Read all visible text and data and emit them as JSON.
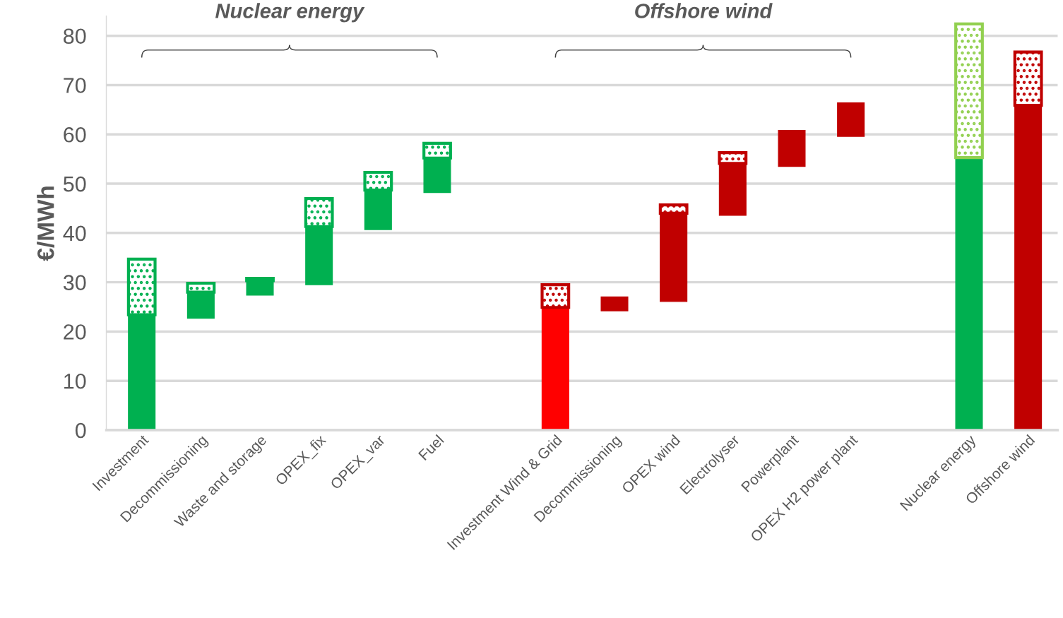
{
  "chart_data": {
    "type": "bar",
    "ylabel": "€/MWh",
    "categories": [
      "Investment",
      "Decommissioning",
      "Waste and storage",
      "OPEX_fix",
      "OPEX_var",
      "Fuel",
      null,
      "Investment Wind & Grid",
      "Decommissioning",
      "OPEX wind",
      "Electrolyser",
      "Powerplant",
      "OPEX H2 power plant",
      null,
      "Nuclear energy",
      "Offshore wind"
    ],
    "series": [
      {
        "base": [
          0,
          22.7,
          27.4,
          29.5,
          40.7,
          48.2,
          null,
          0,
          24.2,
          26.1,
          43.6,
          53.5,
          59.6,
          null,
          0,
          0
        ],
        "values": [
          23.4,
          5.3,
          2.9,
          11.8,
          8.0,
          7.0,
          null,
          24.9,
          2.8,
          17.9,
          10.5,
          7.3,
          6.8,
          null,
          55.3,
          65.9
        ],
        "colors": [
          "#00b050",
          "#00b050",
          "#00b050",
          "#00b050",
          "#00b050",
          "#00b050",
          "#00b050",
          "#ff0000",
          "#c00000",
          "#c00000",
          "#c00000",
          "#c00000",
          "#c00000",
          "#00b050",
          "#00b050",
          "#c00000"
        ]
      },
      {
        "base": [
          23.4,
          28.0,
          30.3,
          41.3,
          48.7,
          55.2,
          null,
          24.9,
          null,
          44.0,
          54.1,
          null,
          null,
          null,
          55.3,
          65.9
        ],
        "values": [
          11.3,
          1.8,
          0.5,
          5.7,
          3.6,
          3.0,
          null,
          4.6,
          null,
          1.7,
          2.2,
          null,
          null,
          null,
          27.1,
          10.8
        ],
        "colors": [
          "#00b050",
          "#00b050",
          "#00b050",
          "#00b050",
          "#00b050",
          "#00b050",
          "#00b050",
          "#c00000",
          "#c00000",
          "#c00000",
          "#c00000",
          "#c00000",
          "#c00000",
          "#00b050",
          "#92d050",
          "#c00000"
        ]
      }
    ],
    "annotations": [
      "Nuclear energy",
      "Offshore wind"
    ],
    "ylim": [
      0,
      84
    ],
    "yticks": [
      0,
      10,
      20,
      30,
      40,
      50,
      60,
      70,
      80
    ],
    "grid": "y"
  }
}
